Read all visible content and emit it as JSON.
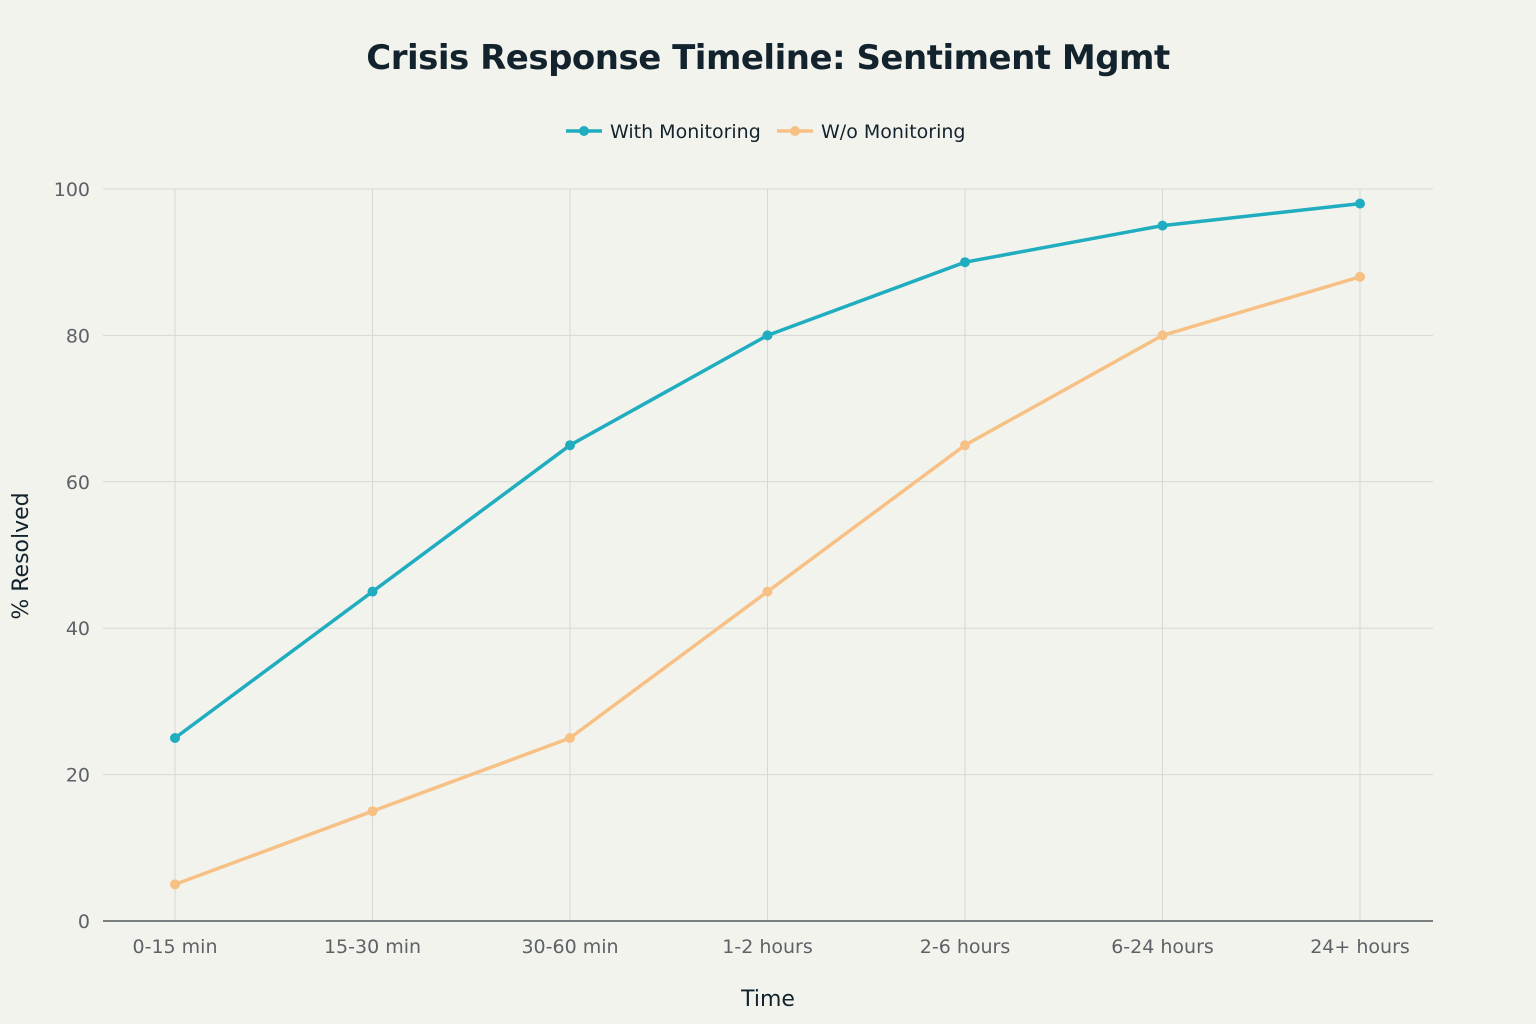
{
  "chart_data": {
    "type": "line",
    "title": "Crisis Response Timeline: Sentiment Mgmt",
    "xlabel": "Time",
    "ylabel": "% Resolved",
    "categories": [
      "0-15 min",
      "15-30 min",
      "30-60 min",
      "1-2 hours",
      "2-6 hours",
      "6-24 hours",
      "24+ hours"
    ],
    "ylim": [
      0,
      100
    ],
    "yticks": [
      0,
      20,
      40,
      60,
      80,
      100
    ],
    "grid": true,
    "legend_position": "top-center",
    "series": [
      {
        "name": "With Monitoring",
        "color": "#1fadbf",
        "values": [
          25,
          45,
          65,
          80,
          90,
          95,
          98
        ]
      },
      {
        "name": "W/o Monitoring",
        "color": "#f7c185",
        "values": [
          5,
          15,
          25,
          45,
          65,
          80,
          88
        ]
      }
    ]
  }
}
